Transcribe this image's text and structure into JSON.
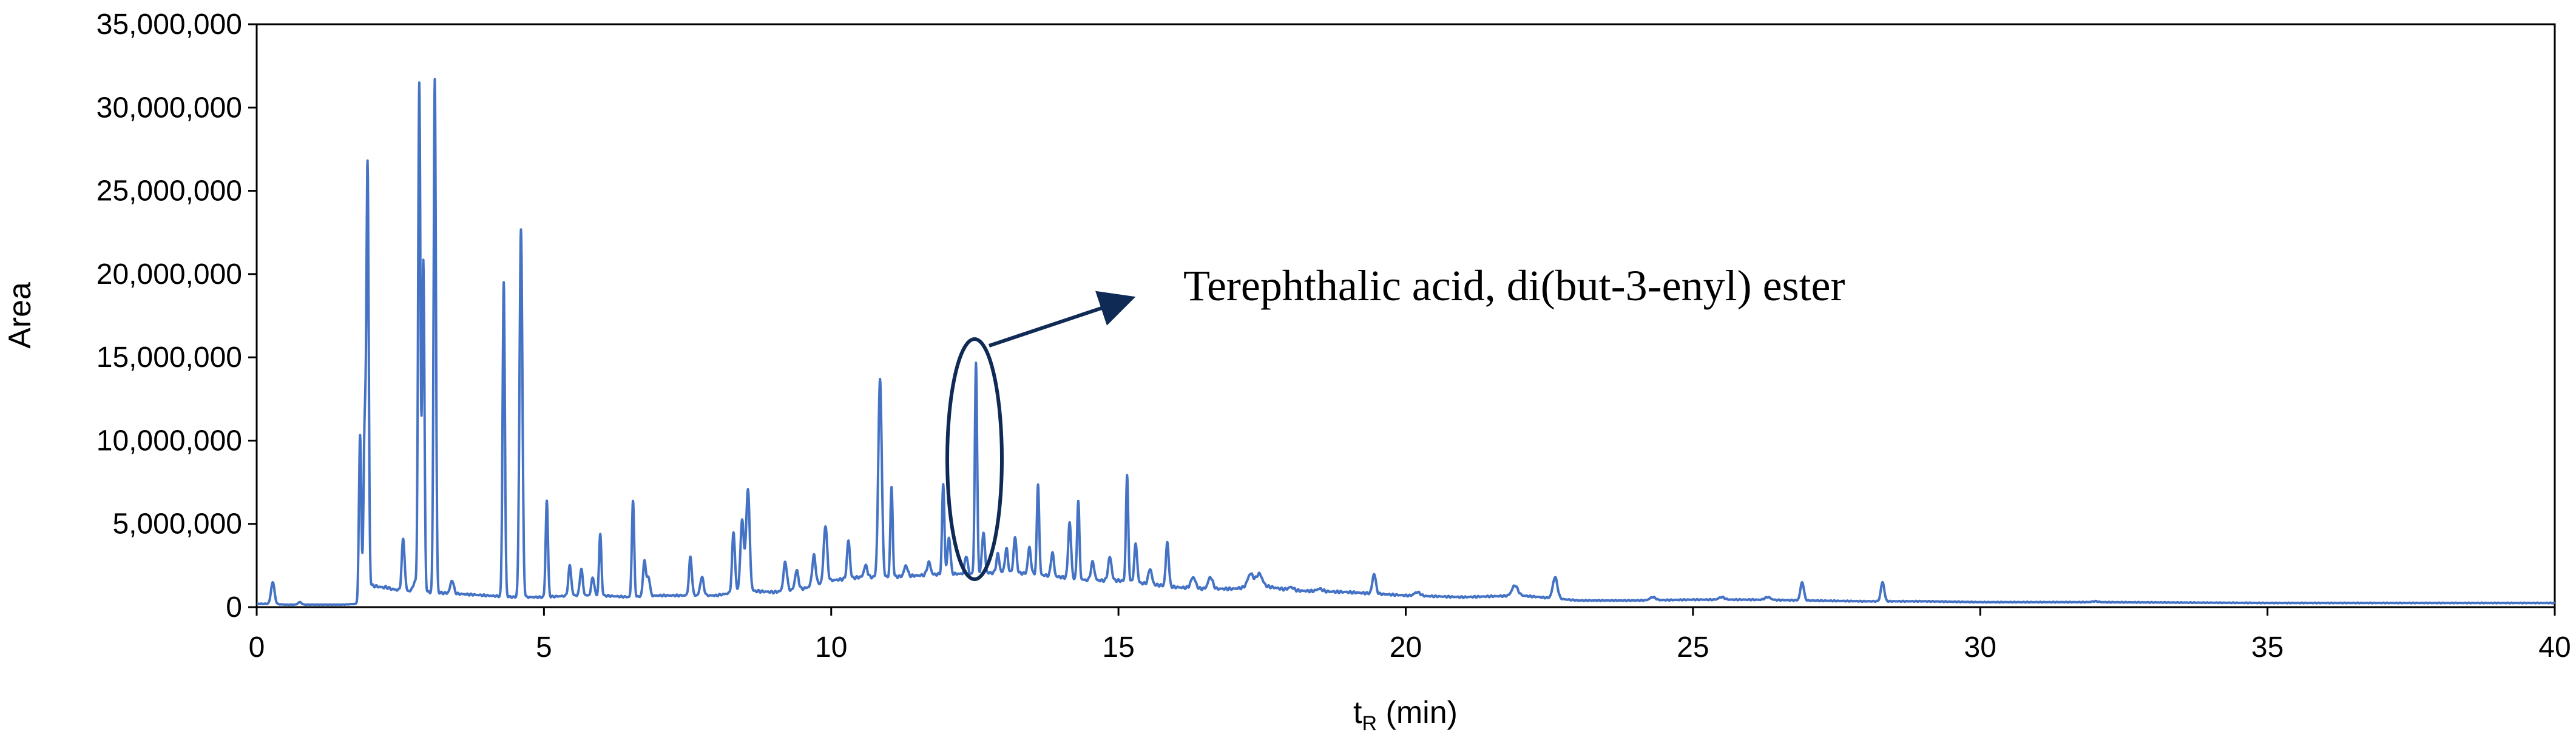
{
  "chart_data": {
    "type": "line",
    "title": "",
    "xlabel": "t",
    "xlabel_subscript": "R",
    "xlabel_unit": " (min)",
    "ylabel": "Area",
    "xlim": [
      0,
      40
    ],
    "ylim": [
      0,
      35000000
    ],
    "x_ticks": [
      0,
      5,
      10,
      15,
      20,
      25,
      30,
      35,
      40
    ],
    "x_tick_labels": [
      "0",
      "5",
      "10",
      "15",
      "20",
      "25",
      "30",
      "35",
      "40"
    ],
    "y_ticks": [
      0,
      5000000,
      10000000,
      15000000,
      20000000,
      25000000,
      30000000,
      35000000
    ],
    "y_tick_labels": [
      "0",
      "5,000,000",
      "10,000,000",
      "15,000,000",
      "20,000,000",
      "25,000,000",
      "30,000,000",
      "35,000,000"
    ],
    "grid": false,
    "legend": "none",
    "line_color": "#4472C4",
    "baseline": [
      [
        0,
        0.2
      ],
      [
        0.25,
        0.2
      ],
      [
        0.5,
        0.15
      ],
      [
        1.0,
        0.15
      ],
      [
        1.5,
        0.15
      ],
      [
        1.75,
        0.2
      ],
      [
        2.0,
        1.3
      ],
      [
        2.5,
        1.0
      ],
      [
        3.0,
        0.9
      ],
      [
        3.5,
        0.8
      ],
      [
        4.0,
        0.7
      ],
      [
        4.5,
        0.6
      ],
      [
        5.0,
        0.6
      ],
      [
        5.5,
        0.7
      ],
      [
        6.0,
        0.7
      ],
      [
        6.5,
        0.6
      ],
      [
        7.0,
        0.7
      ],
      [
        7.5,
        0.7
      ],
      [
        8.0,
        0.7
      ],
      [
        8.5,
        1.0
      ],
      [
        9.0,
        0.9
      ],
      [
        9.5,
        1.1
      ],
      [
        10.0,
        1.6
      ],
      [
        10.5,
        1.8
      ],
      [
        11.0,
        1.8
      ],
      [
        11.5,
        1.9
      ],
      [
        12.0,
        2.0
      ],
      [
        12.5,
        2.0
      ],
      [
        13.0,
        2.1
      ],
      [
        13.5,
        2.0
      ],
      [
        14.0,
        1.8
      ],
      [
        14.5,
        1.6
      ],
      [
        15.0,
        1.6
      ],
      [
        15.5,
        1.4
      ],
      [
        16.0,
        1.2
      ],
      [
        16.5,
        1.1
      ],
      [
        17.0,
        1.1
      ],
      [
        17.5,
        1.3
      ],
      [
        18.0,
        1.0
      ],
      [
        19.0,
        0.9
      ],
      [
        20.0,
        0.7
      ],
      [
        21.0,
        0.6
      ],
      [
        22.0,
        0.7
      ],
      [
        23.0,
        0.4
      ],
      [
        24.0,
        0.4
      ],
      [
        25.0,
        0.45
      ],
      [
        26.0,
        0.45
      ],
      [
        27.0,
        0.4
      ],
      [
        28.0,
        0.35
      ],
      [
        29.0,
        0.35
      ],
      [
        30.0,
        0.3
      ],
      [
        32.0,
        0.3
      ],
      [
        35.0,
        0.25
      ],
      [
        40.0,
        0.25
      ]
    ],
    "peaks": [
      [
        0.28,
        1.5,
        0.03
      ],
      [
        0.75,
        0.3,
        0.03
      ],
      [
        1.8,
        10.3,
        0.02
      ],
      [
        1.88,
        10.6,
        0.02
      ],
      [
        1.93,
        26.4,
        0.02
      ],
      [
        2.25,
        1.2,
        0.03
      ],
      [
        2.45,
        1.0,
        0.03
      ],
      [
        2.55,
        4.1,
        0.025
      ],
      [
        2.75,
        1.5,
        0.03
      ],
      [
        2.83,
        31.4,
        0.02
      ],
      [
        2.9,
        20.8,
        0.02
      ],
      [
        3.1,
        31.7,
        0.02
      ],
      [
        3.4,
        1.6,
        0.03
      ],
      [
        4.3,
        19.5,
        0.02
      ],
      [
        4.6,
        22.7,
        0.025
      ],
      [
        5.05,
        6.4,
        0.02
      ],
      [
        5.45,
        2.5,
        0.025
      ],
      [
        5.65,
        2.3,
        0.025
      ],
      [
        5.85,
        1.8,
        0.025
      ],
      [
        5.98,
        4.4,
        0.02
      ],
      [
        6.55,
        6.4,
        0.02
      ],
      [
        6.75,
        2.8,
        0.025
      ],
      [
        6.82,
        1.8,
        0.025
      ],
      [
        7.55,
        3.0,
        0.025
      ],
      [
        7.75,
        1.8,
        0.03
      ],
      [
        8.3,
        4.5,
        0.025
      ],
      [
        8.45,
        5.2,
        0.03
      ],
      [
        8.55,
        7.1,
        0.03
      ],
      [
        9.2,
        2.7,
        0.03
      ],
      [
        9.4,
        2.2,
        0.03
      ],
      [
        9.7,
        3.1,
        0.03
      ],
      [
        9.9,
        4.9,
        0.03
      ],
      [
        10.3,
        4.0,
        0.025
      ],
      [
        10.6,
        2.5,
        0.03
      ],
      [
        10.85,
        13.7,
        0.03
      ],
      [
        11.05,
        7.2,
        0.02
      ],
      [
        11.3,
        2.5,
        0.03
      ],
      [
        11.7,
        2.7,
        0.03
      ],
      [
        11.95,
        7.4,
        0.02
      ],
      [
        12.05,
        4.2,
        0.025
      ],
      [
        12.35,
        3.1,
        0.025
      ],
      [
        12.52,
        14.7,
        0.02
      ],
      [
        12.65,
        4.5,
        0.025
      ],
      [
        12.9,
        3.2,
        0.025
      ],
      [
        13.05,
        3.5,
        0.025
      ],
      [
        13.2,
        4.2,
        0.025
      ],
      [
        13.45,
        3.6,
        0.025
      ],
      [
        13.6,
        7.4,
        0.02
      ],
      [
        13.85,
        3.3,
        0.025
      ],
      [
        14.15,
        5.1,
        0.025
      ],
      [
        14.3,
        6.4,
        0.02
      ],
      [
        14.55,
        2.7,
        0.03
      ],
      [
        14.85,
        3.0,
        0.03
      ],
      [
        15.15,
        7.9,
        0.02
      ],
      [
        15.3,
        3.8,
        0.025
      ],
      [
        15.55,
        2.3,
        0.03
      ],
      [
        15.85,
        3.9,
        0.025
      ],
      [
        16.3,
        1.8,
        0.04
      ],
      [
        16.6,
        1.8,
        0.04
      ],
      [
        17.3,
        2.0,
        0.05
      ],
      [
        17.45,
        2.0,
        0.05
      ],
      [
        18.0,
        1.2,
        0.05
      ],
      [
        18.5,
        1.1,
        0.05
      ],
      [
        19.45,
        2.0,
        0.03
      ],
      [
        20.2,
        0.9,
        0.05
      ],
      [
        21.9,
        1.3,
        0.05
      ],
      [
        22.6,
        1.8,
        0.04
      ],
      [
        24.3,
        0.6,
        0.05
      ],
      [
        25.5,
        0.6,
        0.05
      ],
      [
        26.3,
        0.6,
        0.05
      ],
      [
        26.9,
        1.5,
        0.03
      ],
      [
        28.3,
        1.5,
        0.03
      ],
      [
        32.0,
        0.35,
        0.05
      ]
    ],
    "annotations": [
      {
        "text": "Terephthalic acid, di(but-3-enyl) ester",
        "points_to": {
          "x": 12.52,
          "y": 14700000
        }
      }
    ]
  }
}
